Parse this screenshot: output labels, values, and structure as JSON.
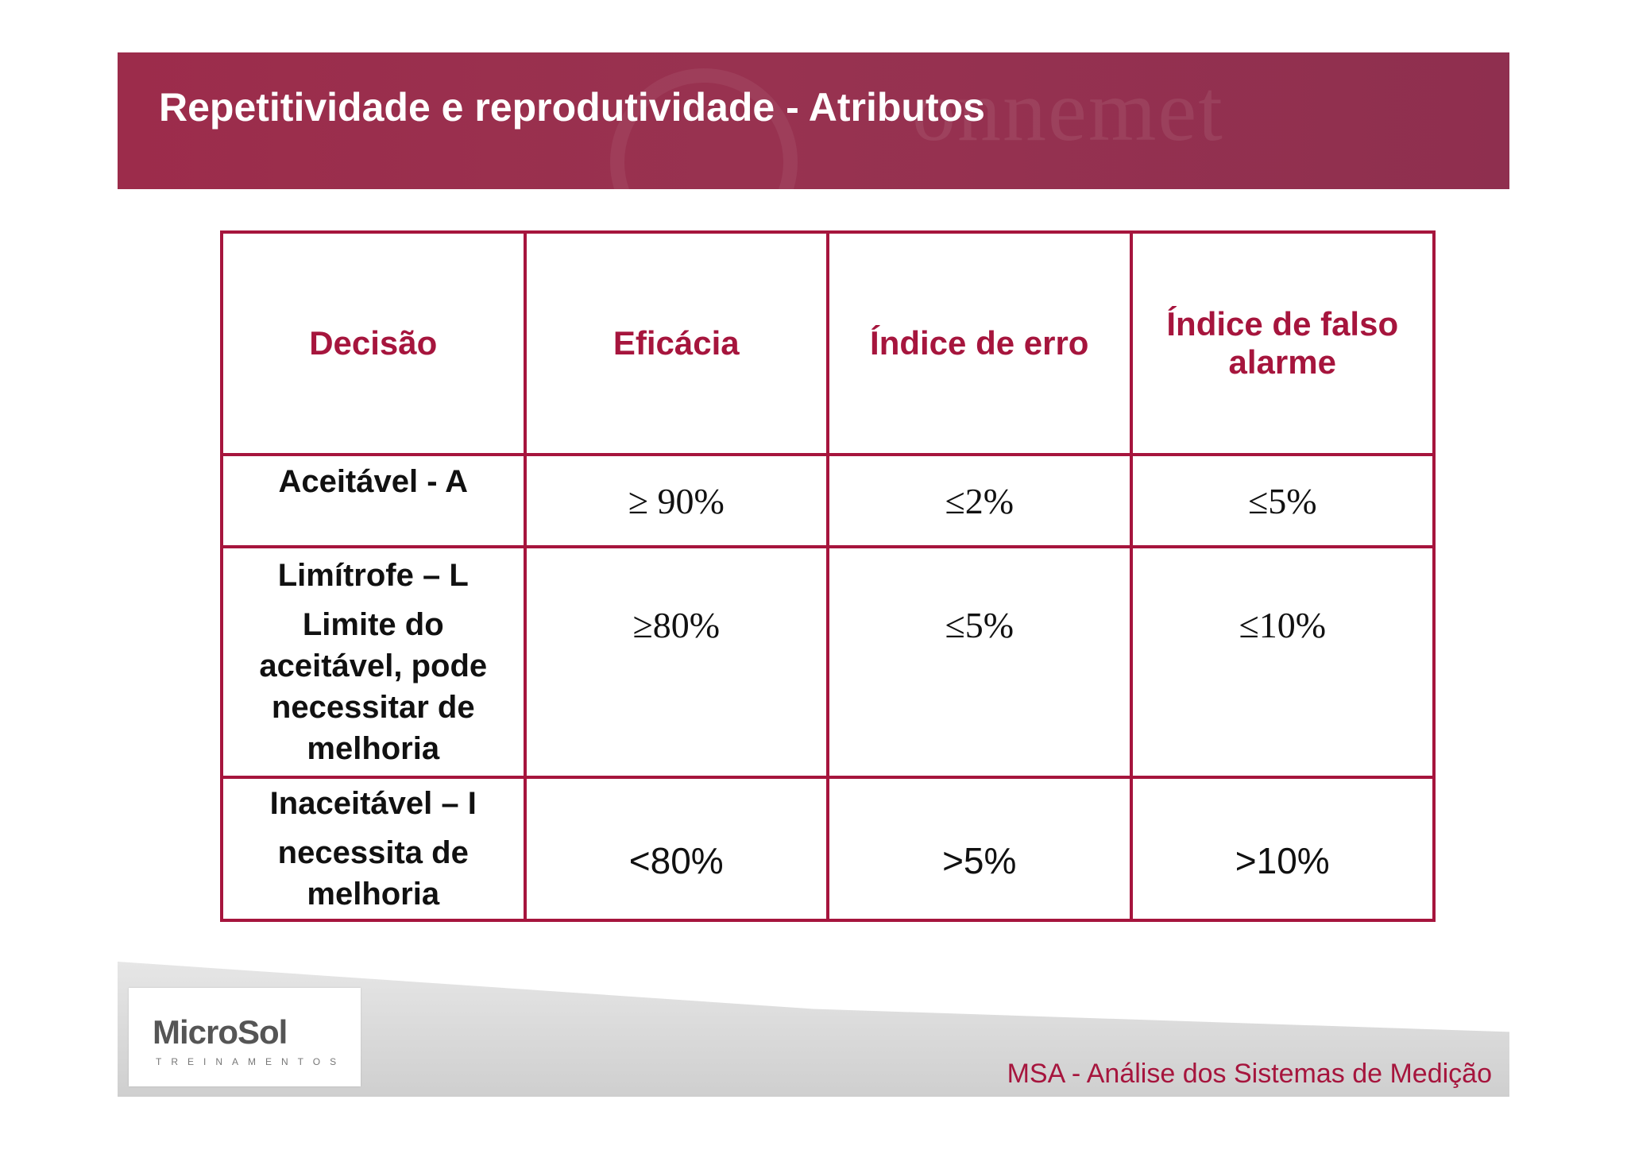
{
  "header": {
    "title": "Repetitividade e reprodutividade - Atributos"
  },
  "table": {
    "headers": [
      "Decisão",
      "Eficácia",
      "Índice de erro",
      "Índice de falso alarme"
    ],
    "rows": [
      {
        "decision": [
          "Aceitável - A"
        ],
        "efficacy": "≥ 90%",
        "error": "≤2%",
        "false_alarm": "≤5%"
      },
      {
        "decision": [
          "Limítrofe – L",
          "Limite do aceitável, pode necessitar de melhoria"
        ],
        "efficacy": "≥80%",
        "error": "≤5%",
        "false_alarm": "≤10%"
      },
      {
        "decision": [
          "Inaceitável – I",
          "necessita de melhoria"
        ],
        "efficacy": "<80%",
        "error": ">5%",
        "false_alarm": ">10%"
      }
    ]
  },
  "footer": {
    "logo_name": "MicroSol",
    "logo_tagline": "TREINAMENTOS",
    "caption": "MSA - Análise dos Sistemas de Medição"
  }
}
